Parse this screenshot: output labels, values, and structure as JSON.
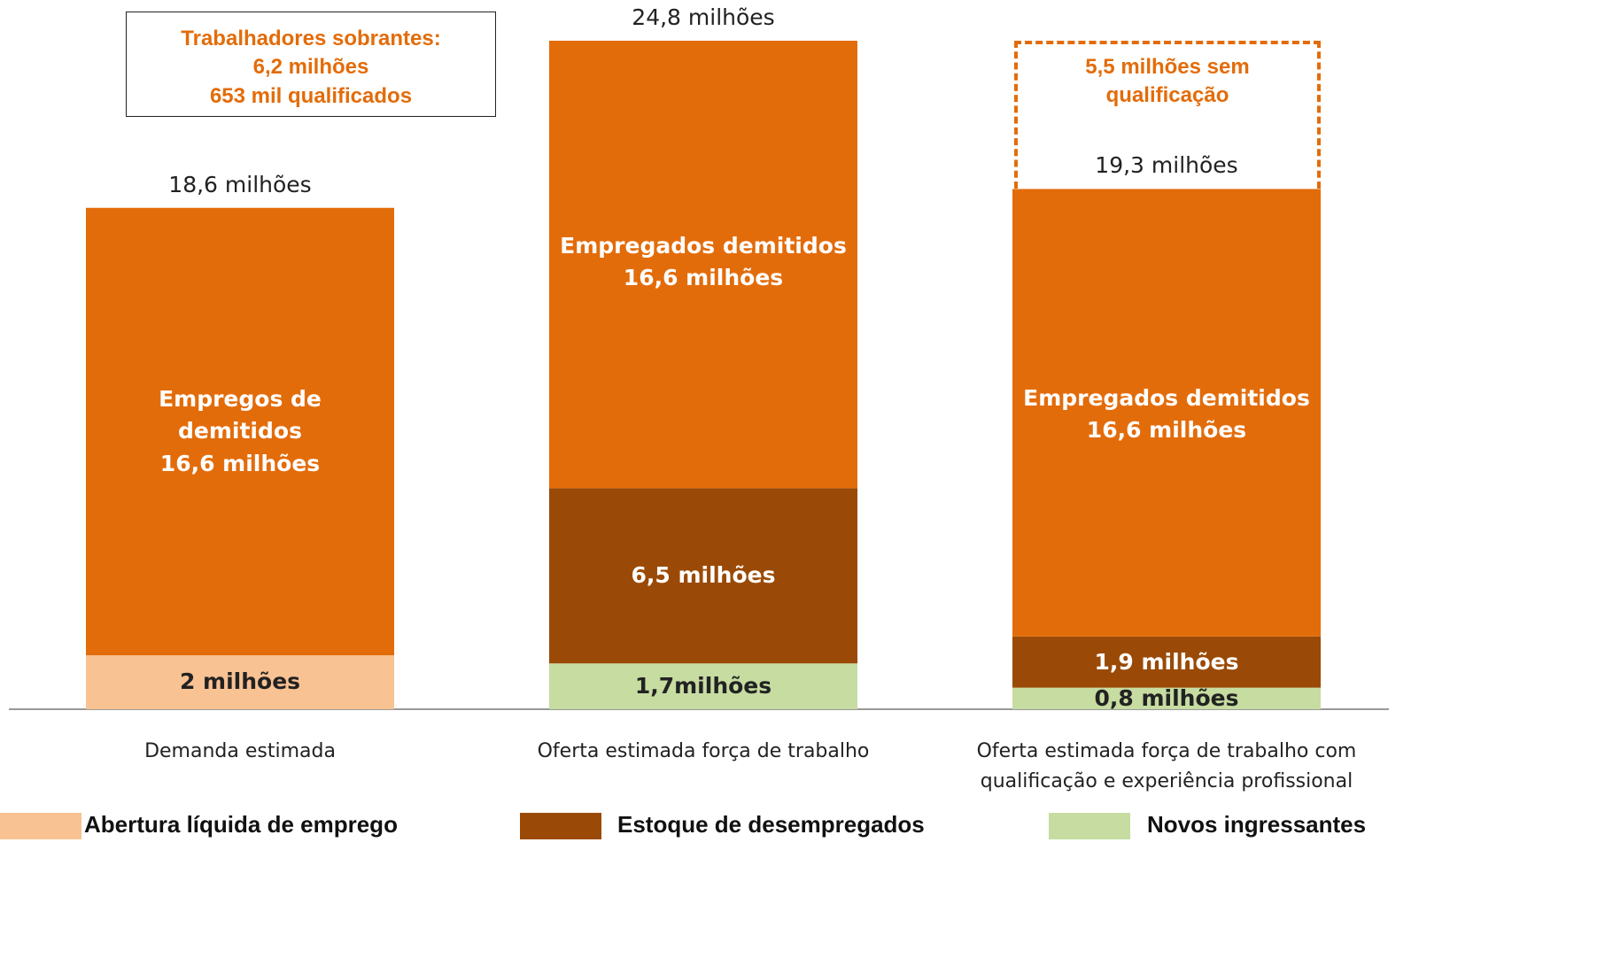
{
  "chart_data": {
    "type": "stacked_bar",
    "categories": [
      "Demanda estimada",
      "Oferta estimada força de trabalho",
      "Oferta estimada força de trabalho com\nqualificação e experiência profissional"
    ],
    "series": [
      {
        "name": "Abertura líquida de emprego",
        "color": "#f9c293",
        "values": [
          2,
          null,
          null
        ],
        "value_labels": [
          "2 milhões",
          null,
          null
        ]
      },
      {
        "name": "Estoque de desempregados",
        "color": "#9a4a06",
        "values": [
          null,
          6.5,
          1.9
        ],
        "value_labels": [
          null,
          "6,5 milhões",
          "1,9 milhões"
        ]
      },
      {
        "name": "Novos ingressantes",
        "color": "#c6dca1",
        "values": [
          null,
          1.7,
          0.8
        ],
        "value_labels": [
          null,
          "1,7milhões",
          "0,8 milhões"
        ]
      },
      {
        "color": "#e36c0a",
        "values": [
          16.6,
          16.6,
          16.6
        ],
        "value_labels": [
          "Empregos de\ndemitidos\n16,6 milhões",
          "Empregados demitidos\n16,6 milhões",
          "Empregados demitidos\n16,6 milhões"
        ]
      }
    ],
    "totals": [
      18.6,
      24.8,
      19.3
    ],
    "total_labels": [
      "18,6 milhões",
      "24,8 milhões",
      "19,3 milhões"
    ],
    "annotations": [
      "Trabalhadores sobrantes:\n6,2 milhões\n653 mil qualificados",
      "5,5 milhões sem\nqualificação"
    ]
  }
}
